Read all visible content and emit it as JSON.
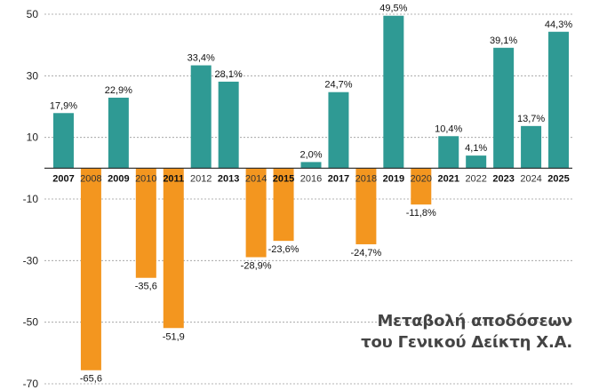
{
  "chart_data": {
    "type": "bar",
    "title": "Μεταβολή αποδόσεων του Γενικού Δείκτη Χ.Α.",
    "title_lines": [
      "Μεταβολή αποδόσεων",
      "του Γενικού Δείκτη Χ.Α."
    ],
    "ylim": [
      -70,
      50
    ],
    "yticks": [
      50,
      30,
      10,
      -10,
      -30,
      -50,
      -70
    ],
    "grid": "dashed horizontal",
    "categories": [
      "2007",
      "2008",
      "2009",
      "2010",
      "2011",
      "2012",
      "2013",
      "2014",
      "2015",
      "2016",
      "2017",
      "2018",
      "2019",
      "2020",
      "2021",
      "2022",
      "2023",
      "2024",
      "2025"
    ],
    "bold_years": [
      "2007",
      "2009",
      "2011",
      "2013",
      "2015",
      "2017",
      "2019",
      "2021",
      "2023",
      "2025"
    ],
    "values": [
      17.9,
      -65.6,
      22.9,
      -35.6,
      -51.9,
      33.4,
      28.1,
      -28.9,
      -23.6,
      2.0,
      24.7,
      -24.7,
      49.5,
      -11.8,
      10.4,
      4.1,
      39.1,
      13.7,
      44.3
    ],
    "labels": [
      "17,9%",
      "-65,6",
      "22,9%",
      "-35,6",
      "-51,9",
      "33,4%",
      "28,1%",
      "-28,9%",
      "-23,6%",
      "2,0%",
      "24,7%",
      "-24,7%",
      "49,5%",
      "-11,8%",
      "10,4%",
      "4,1%",
      "39,1%",
      "13,7%",
      "44,3%"
    ],
    "colors": {
      "positive": "#2f9a94",
      "negative": "#f3961f",
      "axis": "#222222",
      "grid": "#9a9a9a"
    }
  }
}
